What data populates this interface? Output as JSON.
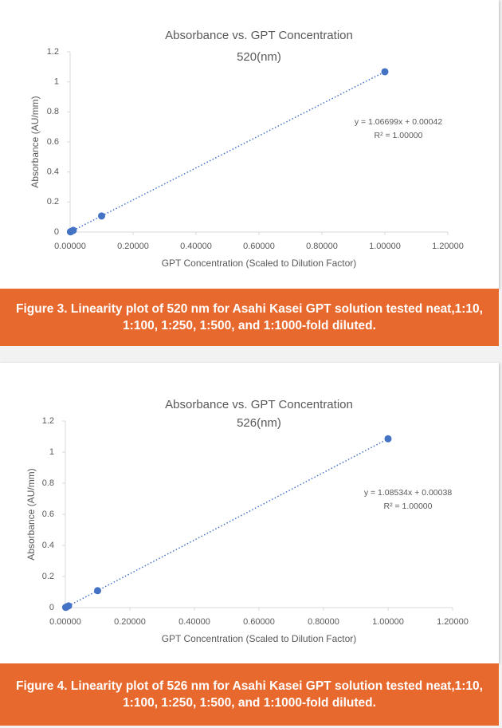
{
  "chart_data": [
    {
      "type": "scatter",
      "title": "Absorbance vs. GPT Concentration",
      "subtitle": "520(nm)",
      "x_label": "GPT Concentration (Scaled to Dilution Factor)",
      "y_label": "Absorbance (AU/mm)",
      "series": [
        {
          "color": "#4472c4",
          "x": [
            1,
            0.1,
            0.01,
            0.004,
            0.002,
            0.001
          ],
          "values": [
            1.0674,
            0.1071,
            0.0111,
            0.0047,
            0.0026,
            0.0015
          ]
        }
      ],
      "annotations": [
        "y = 1.06699x + 0.00042",
        "R² = 1.00000"
      ],
      "xlim": [
        0,
        1.2
      ],
      "xticks": [
        {
          "value": 0,
          "label": "0.00000"
        },
        {
          "value": 0.2,
          "label": "0.20000"
        },
        {
          "value": 0.4,
          "label": "0.40000"
        },
        {
          "value": 0.6,
          "label": "0.60000"
        },
        {
          "value": 0.8,
          "label": "0.80000"
        },
        {
          "value": 1,
          "label": "1.00000"
        },
        {
          "value": 1.2,
          "label": "1.20000"
        }
      ],
      "ylim": [
        0,
        1.2
      ],
      "yticks": [
        0,
        0.2,
        0.4,
        0.6,
        0.8,
        1,
        1.2
      ],
      "grid": false,
      "caption": "Figure 3. Linearity plot of 520 nm for Asahi Kasei GPT solution tested neat,1:10, 1:100, 1:250, 1:500, and 1:1000-fold diluted."
    },
    {
      "type": "scatter",
      "title": "Absorbance vs. GPT Concentration",
      "subtitle": "526(nm)",
      "x_label": "GPT Concentration (Scaled to Dilution Factor)",
      "y_label": "Absorbance (AU/mm)",
      "series": [
        {
          "color": "#4472c4",
          "x": [
            1,
            0.1,
            0.01,
            0.004,
            0.002,
            0.001
          ],
          "values": [
            1.0857,
            0.1089,
            0.0112,
            0.0047,
            0.0025,
            0.0015
          ]
        }
      ],
      "annotations": [
        "y = 1.08534x + 0.00038",
        "R² = 1.00000"
      ],
      "xlim": [
        0,
        1.2
      ],
      "xticks": [
        {
          "value": 0,
          "label": "0.00000"
        },
        {
          "value": 0.2,
          "label": "0.20000"
        },
        {
          "value": 0.4,
          "label": "0.40000"
        },
        {
          "value": 0.6,
          "label": "0.60000"
        },
        {
          "value": 0.8,
          "label": "0.80000"
        },
        {
          "value": 1,
          "label": "1.00000"
        },
        {
          "value": 1.2,
          "label": "1.20000"
        }
      ],
      "ylim": [
        0,
        1.2
      ],
      "yticks": [
        0,
        0.2,
        0.4,
        0.6,
        0.8,
        1,
        1.2
      ],
      "grid": false,
      "caption": "Figure 4. Linearity plot of 526 nm for Asahi Kasei GPT solution tested neat,1:10, 1:100, 1:250, 1:500, and 1:1000-fold diluted."
    }
  ]
}
